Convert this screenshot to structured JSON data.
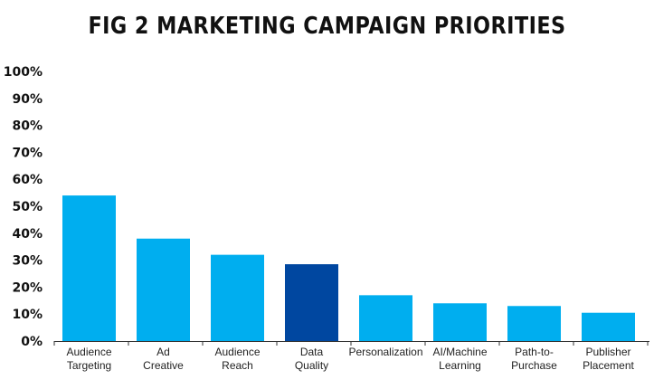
{
  "chart_data": {
    "type": "bar",
    "title": "FIG 2 MARKETING CAMPAIGN PRIORITIES",
    "categories": [
      [
        "Audience",
        "Targeting"
      ],
      [
        "Ad",
        "Creative"
      ],
      [
        "Audience",
        "Reach"
      ],
      [
        "Data",
        "Quality"
      ],
      [
        "Personalization"
      ],
      [
        "AI/Machine",
        "Learning"
      ],
      [
        "Path-to-",
        "Purchase"
      ],
      [
        "Publisher",
        "Placement"
      ]
    ],
    "values": [
      54,
      38,
      32,
      28.5,
      17,
      14,
      13,
      10.5
    ],
    "highlight_index": 3,
    "colors": {
      "bar": "#00AEEF",
      "highlight": "#0047A0",
      "axis": "#333333"
    },
    "yticks": [
      "0%",
      "10%",
      "20%",
      "30%",
      "40%",
      "50%",
      "60%",
      "70%",
      "80%",
      "90%",
      "100%"
    ],
    "ylim": [
      0,
      100
    ],
    "grid": false,
    "legend": "none"
  }
}
